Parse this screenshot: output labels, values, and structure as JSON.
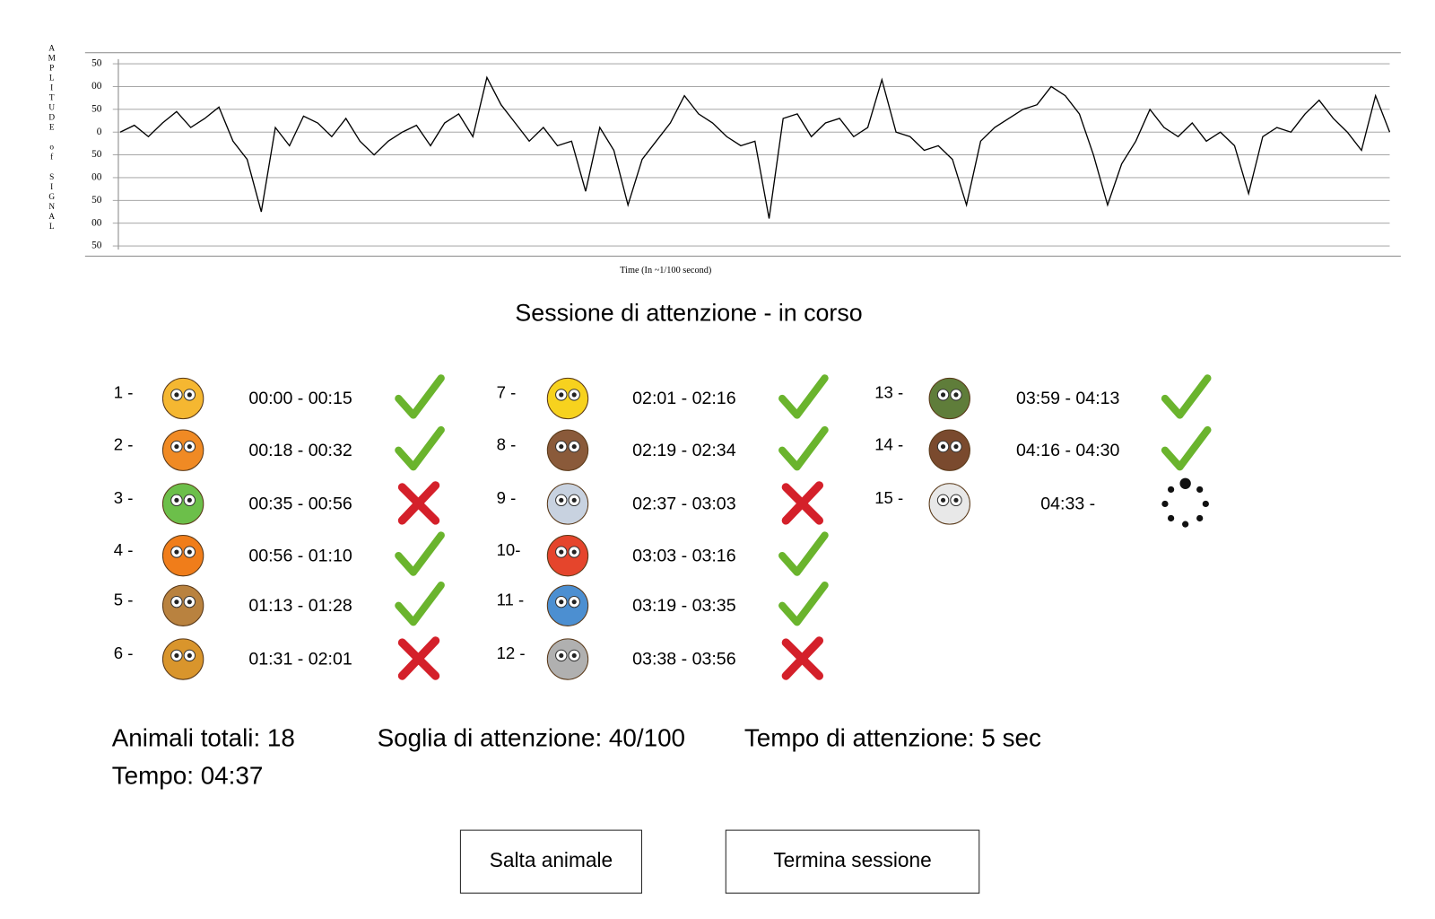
{
  "chart_data": {
    "type": "line",
    "ylabel": "AMPLITUDE of SIGNAL",
    "xlabel": "Time (In ~1/100 second)",
    "color": "#000000",
    "grid": true,
    "ylim": [
      -250,
      150
    ],
    "yticks": [
      {
        "value": 150,
        "label": "50"
      },
      {
        "value": 100,
        "label": "00"
      },
      {
        "value": 50,
        "label": "50"
      },
      0,
      {
        "value": -50,
        "label": "50"
      },
      {
        "value": -100,
        "label": "00"
      },
      {
        "value": -150,
        "label": "50"
      },
      {
        "value": -200,
        "label": "00"
      },
      {
        "value": -250,
        "label": "50"
      }
    ],
    "values": [
      0,
      15,
      -10,
      20,
      45,
      10,
      30,
      55,
      -20,
      -60,
      -175,
      10,
      -30,
      35,
      20,
      -10,
      30,
      -20,
      -50,
      -20,
      0,
      15,
      -30,
      20,
      40,
      -10,
      120,
      60,
      20,
      -20,
      10,
      -30,
      -20,
      -130,
      10,
      -40,
      -160,
      -60,
      -20,
      20,
      80,
      40,
      20,
      -10,
      -30,
      -20,
      -190,
      30,
      40,
      -10,
      20,
      30,
      -10,
      10,
      115,
      0,
      -10,
      -40,
      -30,
      -60,
      -160,
      -20,
      10,
      30,
      50,
      60,
      100,
      80,
      40,
      -50,
      -160,
      -70,
      -20,
      50,
      10,
      -10,
      20,
      -20,
      0,
      -30,
      -135,
      -10,
      10,
      0,
      40,
      70,
      30,
      0,
      -40,
      80,
      0
    ]
  },
  "session": {
    "title": "Sessione di attenzione - in corso",
    "items": [
      {
        "number": "1 -",
        "time": "00:00 - 00:15",
        "status": "ok",
        "color": "#f5b731"
      },
      {
        "number": "2 -",
        "time": "00:18 - 00:32",
        "status": "ok",
        "color": "#f08a24"
      },
      {
        "number": "3 -",
        "time": "00:35 - 00:56",
        "status": "fail",
        "color": "#6cbf4a"
      },
      {
        "number": "4 -",
        "time": "00:56 - 01:10",
        "status": "ok",
        "color": "#f07d1a"
      },
      {
        "number": "5 -",
        "time": "01:13 - 01:28",
        "status": "ok",
        "color": "#b9823f"
      },
      {
        "number": "6 -",
        "time": "01:31 - 02:01",
        "status": "fail",
        "color": "#d9952c"
      },
      {
        "number": "7 -",
        "time": "02:01 - 02:16",
        "status": "ok",
        "color": "#f7d21e"
      },
      {
        "number": "8 -",
        "time": "02:19 - 02:34",
        "status": "ok",
        "color": "#8a5a3a"
      },
      {
        "number": "9 -",
        "time": "02:37 - 03:03",
        "status": "fail",
        "color": "#c8d2e0"
      },
      {
        "number": "10-",
        "time": "03:03 - 03:16",
        "status": "ok",
        "color": "#e5452c"
      },
      {
        "number": "11 -",
        "time": "03:19 - 03:35",
        "status": "ok",
        "color": "#4c8fd1"
      },
      {
        "number": "12 -",
        "time": "03:38 - 03:56",
        "status": "fail",
        "color": "#b0b0b0"
      },
      {
        "number": "13 -",
        "time": "03:59 - 04:13",
        "status": "ok",
        "color": "#5f7d3a"
      },
      {
        "number": "14 -",
        "time": "04:16 - 04:30",
        "status": "ok",
        "color": "#7a4a2e"
      },
      {
        "number": "15 -",
        "time": "04:33 -",
        "status": "pending",
        "color": "#e8e8e8"
      }
    ]
  },
  "stats": {
    "total": "Animali totali:  18",
    "threshold": "Soglia di attenzione: 40/100",
    "attention_time": "Tempo di attenzione: 5 sec",
    "time": "Tempo: 04:37"
  },
  "buttons": {
    "skip": "Salta animale",
    "end": "Termina sessione"
  }
}
